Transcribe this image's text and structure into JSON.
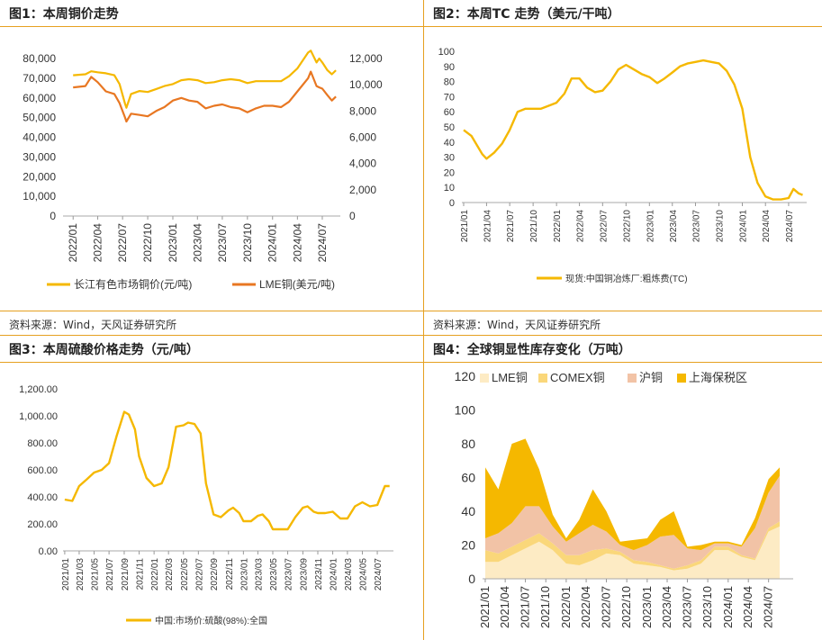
{
  "source_text": "资料来源：Wind，天风证券研究所",
  "chart_data": [
    {
      "type": "line",
      "title": "图1：本周铜价走势",
      "x_ticks": [
        "2022/01",
        "2022/04",
        "2022/07",
        "2022/10",
        "2023/01",
        "2023/04",
        "2023/07",
        "2023/10",
        "2024/01",
        "2024/04",
        "2024/07"
      ],
      "y_left_ticks": [
        "0",
        "10000",
        "20000",
        "30000",
        "40000",
        "50000",
        "60000",
        "70000",
        "80000"
      ],
      "y_right_ticks": [
        "0",
        "2,000",
        "4,000",
        "6,000",
        "8,000",
        "10,000",
        "12,000"
      ],
      "ylim_left": [
        0,
        80000
      ],
      "ylim_right": [
        0,
        12000
      ],
      "series": [
        {
          "name": "长江有色市场铜价(元/吨)",
          "color": "#F5B800",
          "axis": "left",
          "points": [
            [
              "2022-01-01",
              71500
            ],
            [
              "2022-02-15",
              72000
            ],
            [
              "2022-03-08",
              73500
            ],
            [
              "2022-04-01",
              73000
            ],
            [
              "2022-05-01",
              72500
            ],
            [
              "2022-06-01",
              71500
            ],
            [
              "2022-06-20",
              67000
            ],
            [
              "2022-07-10",
              57000
            ],
            [
              "2022-07-15",
              55000
            ],
            [
              "2022-08-01",
              62000
            ],
            [
              "2022-09-01",
              63500
            ],
            [
              "2022-10-01",
              63000
            ],
            [
              "2022-11-01",
              64500
            ],
            [
              "2022-12-01",
              66000
            ],
            [
              "2023-01-01",
              67000
            ],
            [
              "2023-02-01",
              69000
            ],
            [
              "2023-03-01",
              69500
            ],
            [
              "2023-04-01",
              69000
            ],
            [
              "2023-05-01",
              67500
            ],
            [
              "2023-06-01",
              68000
            ],
            [
              "2023-07-01",
              69000
            ],
            [
              "2023-08-01",
              69500
            ],
            [
              "2023-09-01",
              69000
            ],
            [
              "2023-10-01",
              67500
            ],
            [
              "2023-11-01",
              68500
            ],
            [
              "2023-12-01",
              68500
            ],
            [
              "2024-01-01",
              68500
            ],
            [
              "2024-02-01",
              68500
            ],
            [
              "2024-03-01",
              71000
            ],
            [
              "2024-04-01",
              75000
            ],
            [
              "2024-05-10",
              83000
            ],
            [
              "2024-05-20",
              84000
            ],
            [
              "2024-06-10",
              78000
            ],
            [
              "2024-06-20",
              80000
            ],
            [
              "2024-07-01",
              78000
            ],
            [
              "2024-07-20",
              74000
            ],
            [
              "2024-08-05",
              72000
            ],
            [
              "2024-08-20",
              74000
            ]
          ]
        },
        {
          "name": "LME铜(美元/吨)",
          "color": "#E87722",
          "axis": "right",
          "points": [
            [
              "2022-01-01",
              9800
            ],
            [
              "2022-02-15",
              9900
            ],
            [
              "2022-03-08",
              10600
            ],
            [
              "2022-04-01",
              10200
            ],
            [
              "2022-05-01",
              9500
            ],
            [
              "2022-06-01",
              9300
            ],
            [
              "2022-06-20",
              8600
            ],
            [
              "2022-07-10",
              7500
            ],
            [
              "2022-07-15",
              7200
            ],
            [
              "2022-08-01",
              7800
            ],
            [
              "2022-09-01",
              7700
            ],
            [
              "2022-10-01",
              7600
            ],
            [
              "2022-11-01",
              8000
            ],
            [
              "2022-12-01",
              8300
            ],
            [
              "2023-01-01",
              8800
            ],
            [
              "2023-02-01",
              9000
            ],
            [
              "2023-03-01",
              8800
            ],
            [
              "2023-04-01",
              8700
            ],
            [
              "2023-05-01",
              8200
            ],
            [
              "2023-06-01",
              8400
            ],
            [
              "2023-07-01",
              8500
            ],
            [
              "2023-08-01",
              8300
            ],
            [
              "2023-09-01",
              8200
            ],
            [
              "2023-10-01",
              7900
            ],
            [
              "2023-11-01",
              8200
            ],
            [
              "2023-12-01",
              8400
            ],
            [
              "2024-01-01",
              8400
            ],
            [
              "2024-02-01",
              8300
            ],
            [
              "2024-03-01",
              8700
            ],
            [
              "2024-04-01",
              9500
            ],
            [
              "2024-05-10",
              10500
            ],
            [
              "2024-05-20",
              11000
            ],
            [
              "2024-06-10",
              9900
            ],
            [
              "2024-06-20",
              9800
            ],
            [
              "2024-07-01",
              9700
            ],
            [
              "2024-07-20",
              9200
            ],
            [
              "2024-08-05",
              8800
            ],
            [
              "2024-08-20",
              9100
            ]
          ]
        }
      ]
    },
    {
      "type": "line",
      "title": "图2：本周TC 走势（美元/干吨）",
      "x_ticks": [
        "2021/01",
        "2021/04",
        "2021/07",
        "2021/10",
        "2022/01",
        "2022/04",
        "2022/07",
        "2022/10",
        "2023/01",
        "2023/04",
        "2023/07",
        "2023/10",
        "2024/01",
        "2024/04",
        "2024/07"
      ],
      "y_ticks": [
        "0",
        "10",
        "20",
        "30",
        "40",
        "50",
        "60",
        "70",
        "80",
        "90",
        "100"
      ],
      "ylim": [
        0,
        100
      ],
      "series": [
        {
          "name": "现货:中国铜冶炼厂:粗炼费(TC)",
          "color": "#F5B800",
          "points": [
            [
              "2021-01-01",
              48
            ],
            [
              "2021-02-01",
              44
            ],
            [
              "2021-03-15",
              32
            ],
            [
              "2021-04-01",
              29
            ],
            [
              "2021-05-01",
              33
            ],
            [
              "2021-06-01",
              39
            ],
            [
              "2021-07-01",
              48
            ],
            [
              "2021-08-01",
              60
            ],
            [
              "2021-09-01",
              62
            ],
            [
              "2021-10-01",
              62
            ],
            [
              "2021-11-01",
              62
            ],
            [
              "2021-12-01",
              64
            ],
            [
              "2022-01-01",
              66
            ],
            [
              "2022-02-01",
              72
            ],
            [
              "2022-03-01",
              82
            ],
            [
              "2022-04-01",
              82
            ],
            [
              "2022-05-01",
              76
            ],
            [
              "2022-06-01",
              73
            ],
            [
              "2022-07-01",
              74
            ],
            [
              "2022-08-01",
              80
            ],
            [
              "2022-09-01",
              88
            ],
            [
              "2022-10-01",
              91
            ],
            [
              "2022-11-01",
              88
            ],
            [
              "2022-12-01",
              85
            ],
            [
              "2023-01-01",
              83
            ],
            [
              "2023-02-01",
              79
            ],
            [
              "2023-03-01",
              82
            ],
            [
              "2023-04-01",
              86
            ],
            [
              "2023-05-01",
              90
            ],
            [
              "2023-06-01",
              92
            ],
            [
              "2023-07-01",
              93
            ],
            [
              "2023-08-01",
              94
            ],
            [
              "2023-09-01",
              93
            ],
            [
              "2023-10-01",
              92
            ],
            [
              "2023-11-01",
              87
            ],
            [
              "2023-12-01",
              78
            ],
            [
              "2024-01-01",
              62
            ],
            [
              "2024-02-01",
              30
            ],
            [
              "2024-03-01",
              13
            ],
            [
              "2024-04-01",
              4
            ],
            [
              "2024-05-01",
              2
            ],
            [
              "2024-06-01",
              2
            ],
            [
              "2024-07-01",
              3
            ],
            [
              "2024-07-20",
              9
            ],
            [
              "2024-08-10",
              6
            ],
            [
              "2024-08-25",
              5
            ]
          ]
        }
      ]
    },
    {
      "type": "line",
      "title": "图3：本周硫酸价格走势（元/吨）",
      "x_ticks": [
        "2021/01",
        "2021/03",
        "2021/05",
        "2021/07",
        "2021/09",
        "2021/11",
        "2022/01",
        "2022/03",
        "2022/05",
        "2022/07",
        "2022/09",
        "2022/11",
        "2023/01",
        "2023/03",
        "2023/05",
        "2023/07",
        "2023/09",
        "2023/11",
        "2024/01",
        "2024/03",
        "2024/05",
        "2024/07"
      ],
      "y_ticks": [
        "0.00",
        "200.00",
        "400.00",
        "600.00",
        "800.00",
        "1,000.00",
        "1,200.00"
      ],
      "ylim": [
        0,
        1200
      ],
      "series": [
        {
          "name": "中国:市场价:硫酸(98%):全国",
          "color": "#F5B800",
          "points": [
            [
              "2021-01-01",
              380
            ],
            [
              "2021-02-01",
              370
            ],
            [
              "2021-03-01",
              480
            ],
            [
              "2021-04-01",
              530
            ],
            [
              "2021-05-01",
              580
            ],
            [
              "2021-06-01",
              600
            ],
            [
              "2021-07-01",
              650
            ],
            [
              "2021-08-01",
              850
            ],
            [
              "2021-09-01",
              1030
            ],
            [
              "2021-09-20",
              1010
            ],
            [
              "2021-10-15",
              900
            ],
            [
              "2021-11-01",
              700
            ],
            [
              "2021-12-01",
              540
            ],
            [
              "2022-01-01",
              480
            ],
            [
              "2022-02-01",
              500
            ],
            [
              "2022-03-01",
              620
            ],
            [
              "2022-04-01",
              920
            ],
            [
              "2022-05-01",
              930
            ],
            [
              "2022-05-20",
              950
            ],
            [
              "2022-06-15",
              940
            ],
            [
              "2022-07-10",
              870
            ],
            [
              "2022-08-01",
              500
            ],
            [
              "2022-09-01",
              270
            ],
            [
              "2022-10-01",
              250
            ],
            [
              "2022-11-01",
              300
            ],
            [
              "2022-11-20",
              320
            ],
            [
              "2022-12-15",
              280
            ],
            [
              "2023-01-01",
              220
            ],
            [
              "2023-02-01",
              220
            ],
            [
              "2023-03-01",
              260
            ],
            [
              "2023-03-20",
              270
            ],
            [
              "2023-04-15",
              220
            ],
            [
              "2023-05-01",
              160
            ],
            [
              "2023-06-01",
              160
            ],
            [
              "2023-07-01",
              160
            ],
            [
              "2023-08-01",
              250
            ],
            [
              "2023-09-01",
              320
            ],
            [
              "2023-09-20",
              330
            ],
            [
              "2023-10-15",
              290
            ],
            [
              "2023-11-01",
              280
            ],
            [
              "2023-12-01",
              280
            ],
            [
              "2024-01-01",
              290
            ],
            [
              "2024-02-01",
              240
            ],
            [
              "2024-03-01",
              240
            ],
            [
              "2024-04-01",
              330
            ],
            [
              "2024-05-01",
              360
            ],
            [
              "2024-06-01",
              330
            ],
            [
              "2024-07-01",
              340
            ],
            [
              "2024-08-01",
              480
            ],
            [
              "2024-08-20",
              480
            ]
          ]
        }
      ]
    },
    {
      "type": "area",
      "title": "图4：全球铜显性库存变化（万吨）",
      "x_ticks": [
        "2021/01",
        "2021/04",
        "2021/07",
        "2021/10",
        "2022/01",
        "2022/04",
        "2022/07",
        "2022/10",
        "2023/01",
        "2023/04",
        "2023/07",
        "2023/10",
        "2024/01",
        "2024/04",
        "2024/07"
      ],
      "y_ticks": [
        "0",
        "20",
        "40",
        "60",
        "80",
        "100",
        "120"
      ],
      "ylim": [
        0,
        120
      ],
      "x": [
        "2021-01-01",
        "2021-03-01",
        "2021-05-01",
        "2021-07-01",
        "2021-09-01",
        "2021-11-01",
        "2022-01-01",
        "2022-03-01",
        "2022-05-01",
        "2022-07-01",
        "2022-09-01",
        "2022-11-01",
        "2023-01-01",
        "2023-03-01",
        "2023-05-01",
        "2023-07-01",
        "2023-09-01",
        "2023-11-01",
        "2024-01-01",
        "2024-03-01",
        "2024-05-01",
        "2024-07-01",
        "2024-08-20"
      ],
      "series": [
        {
          "name": "LME铜",
          "color": "#FDEBC4",
          "values": [
            10,
            10,
            14,
            18,
            22,
            17,
            9,
            8,
            11,
            15,
            14,
            9,
            8,
            7,
            5,
            6,
            9,
            17,
            17,
            13,
            11,
            28,
            31
          ]
        },
        {
          "name": "COMEX铜",
          "color": "#FAD77A",
          "values": [
            7,
            5,
            5,
            5,
            5,
            4,
            5,
            6,
            6,
            3,
            2,
            2,
            2,
            1,
            1,
            2,
            2,
            2,
            2,
            1,
            1,
            2,
            3
          ]
        },
        {
          "name": "沪铜",
          "color": "#F2C3A6",
          "values": [
            7,
            12,
            14,
            20,
            16,
            10,
            8,
            13,
            15,
            10,
            4,
            6,
            10,
            17,
            20,
            10,
            6,
            2,
            2,
            5,
            18,
            21,
            27
          ]
        },
        {
          "name": "上海保税区",
          "color": "#F5B800",
          "values": [
            42,
            26,
            47,
            40,
            22,
            7,
            2,
            8,
            21,
            12,
            2,
            6,
            4,
            10,
            14,
            1,
            3,
            1,
            1,
            1,
            6,
            8,
            5
          ]
        }
      ]
    }
  ]
}
